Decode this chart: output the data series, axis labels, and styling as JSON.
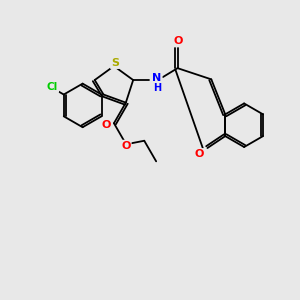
{
  "background_color": "#e8e8e8",
  "bond_color": "#000000",
  "atom_colors": {
    "Cl": "#00cc00",
    "S": "#aaaa00",
    "N": "#0000ff",
    "O": "#ff0000",
    "C": "#000000"
  },
  "figsize": [
    3.0,
    3.0
  ],
  "dpi": 100
}
